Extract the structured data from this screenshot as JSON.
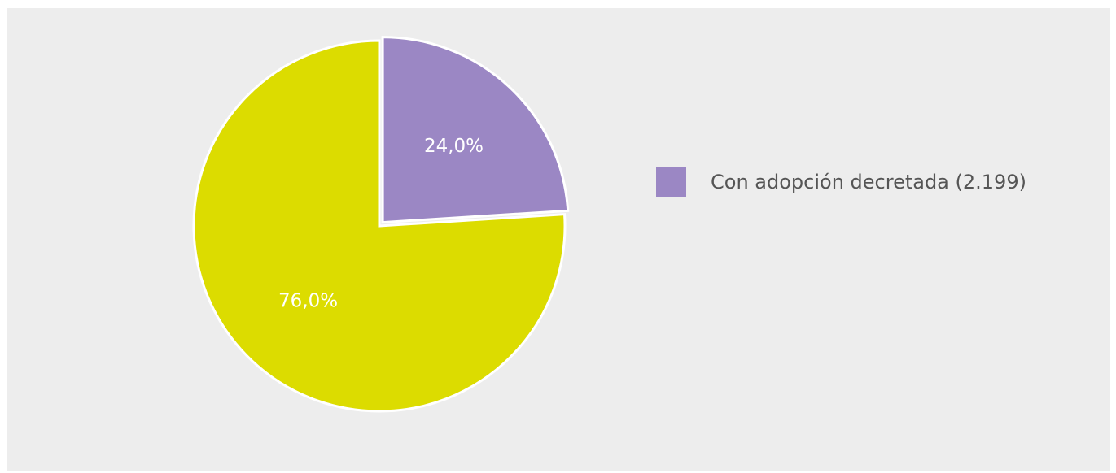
{
  "chart_data": {
    "type": "pie",
    "title": "",
    "series": [
      {
        "values": [
          24.0,
          76.0
        ],
        "data_labels": [
          "24,0%",
          "76,0%"
        ],
        "colors": [
          "#9b87c4",
          "#dcdc00"
        ],
        "exploded": [
          true,
          false
        ]
      }
    ],
    "legend": {
      "placement": "right",
      "entries": [
        {
          "label": "Con adopción decretada (2.199)",
          "color": "#9b87c4"
        }
      ]
    },
    "start_angle": "12 o'clock, clockwise"
  }
}
